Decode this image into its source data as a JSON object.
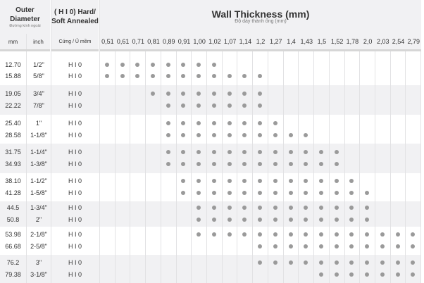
{
  "header": {
    "outer_diameter": "Outer Diameter",
    "outer_diameter_vi": "Đường kính ngoài",
    "temper_line1": "( H I 0) Hard/",
    "temper_line2": "Soft Annealed",
    "wall_thickness": "Wall Thickness (mm)",
    "wall_thickness_vi": "Độ dày thành ống (mm)",
    "col_mm": "mm",
    "col_inch": "inch",
    "col_temper": "Cứng / Ủ mềm"
  },
  "thicknesses": [
    "0,51",
    "0,61",
    "0,71",
    "0,81",
    "0,89",
    "0,91",
    "1,00",
    "1,02",
    "1,07",
    "1,14",
    "1,2",
    "1,27",
    "1,4",
    "1,43",
    "1,5",
    "1,52",
    "1,78",
    "2,0",
    "2,03",
    "2,54",
    "2,79"
  ],
  "dot_color": "#9a9a9a",
  "groups": [
    {
      "rows": [
        {
          "mm": "12.70",
          "inch": "1/2\"",
          "temper": "H I 0",
          "available": [
            0,
            7
          ]
        },
        {
          "mm": "15.88",
          "inch": "5/8\"",
          "temper": "H I 0",
          "available": [
            0,
            10
          ]
        }
      ]
    },
    {
      "rows": [
        {
          "mm": "19.05",
          "inch": "3/4\"",
          "temper": "H I 0",
          "available": [
            3,
            10
          ]
        },
        {
          "mm": "22.22",
          "inch": "7/8\"",
          "temper": "H I 0",
          "available": [
            4,
            10
          ]
        }
      ]
    },
    {
      "rows": [
        {
          "mm": "25.40",
          "inch": "1\"",
          "temper": "H I 0",
          "available": [
            4,
            11
          ]
        },
        {
          "mm": "28.58",
          "inch": "1-1/8\"",
          "temper": "H I 0",
          "available": [
            4,
            13
          ]
        }
      ]
    },
    {
      "rows": [
        {
          "mm": "31.75",
          "inch": "1-1/4\"",
          "temper": "H I 0",
          "available": [
            4,
            15
          ]
        },
        {
          "mm": "34.93",
          "inch": "1-3/8\"",
          "temper": "H I 0",
          "available": [
            4,
            15
          ]
        }
      ]
    },
    {
      "rows": [
        {
          "mm": "38.10",
          "inch": "1-1/2\"",
          "temper": "H I 0",
          "available": [
            5,
            16
          ]
        },
        {
          "mm": "41.28",
          "inch": "1-5/8\"",
          "temper": "H I 0",
          "available": [
            5,
            17
          ]
        }
      ]
    },
    {
      "rows": [
        {
          "mm": "44.5",
          "inch": "1-3/4\"",
          "temper": "H I 0",
          "available": [
            6,
            17
          ]
        },
        {
          "mm": "50.8",
          "inch": "2\"",
          "temper": "H I 0",
          "available": [
            6,
            17
          ]
        }
      ]
    },
    {
      "rows": [
        {
          "mm": "53.98",
          "inch": "2-1/8\"",
          "temper": "H I 0",
          "available": [
            6,
            20
          ]
        },
        {
          "mm": "66.68",
          "inch": "2-5/8\"",
          "temper": "H I 0",
          "available": [
            10,
            20
          ]
        }
      ]
    },
    {
      "rows": [
        {
          "mm": "76.2",
          "inch": "3\"",
          "temper": "H I 0",
          "available": [
            10,
            20
          ]
        },
        {
          "mm": "79.38",
          "inch": "3-1/8\"",
          "temper": "H I 0",
          "available": [
            14,
            20
          ]
        }
      ]
    }
  ]
}
